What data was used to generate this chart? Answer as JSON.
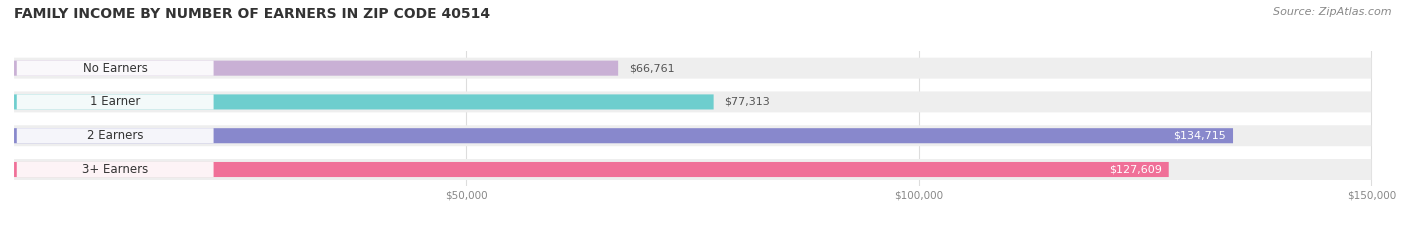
{
  "title": "FAMILY INCOME BY NUMBER OF EARNERS IN ZIP CODE 40514",
  "source": "Source: ZipAtlas.com",
  "categories": [
    "No Earners",
    "1 Earner",
    "2 Earners",
    "3+ Earners"
  ],
  "values": [
    66761,
    77313,
    134715,
    127609
  ],
  "labels": [
    "$66,761",
    "$77,313",
    "$134,715",
    "$127,609"
  ],
  "bar_colors": [
    "#c9b0d5",
    "#6ecece",
    "#8888cc",
    "#f07098"
  ],
  "bar_bg_color": "#eeeeee",
  "background_color": "#ffffff",
  "xmin": 0,
  "xmax": 150000,
  "xticks": [
    50000,
    100000,
    150000
  ],
  "xticklabels": [
    "$50,000",
    "$100,000",
    "$150,000"
  ],
  "title_fontsize": 10,
  "source_fontsize": 8,
  "label_fontsize": 8,
  "category_fontsize": 8.5
}
